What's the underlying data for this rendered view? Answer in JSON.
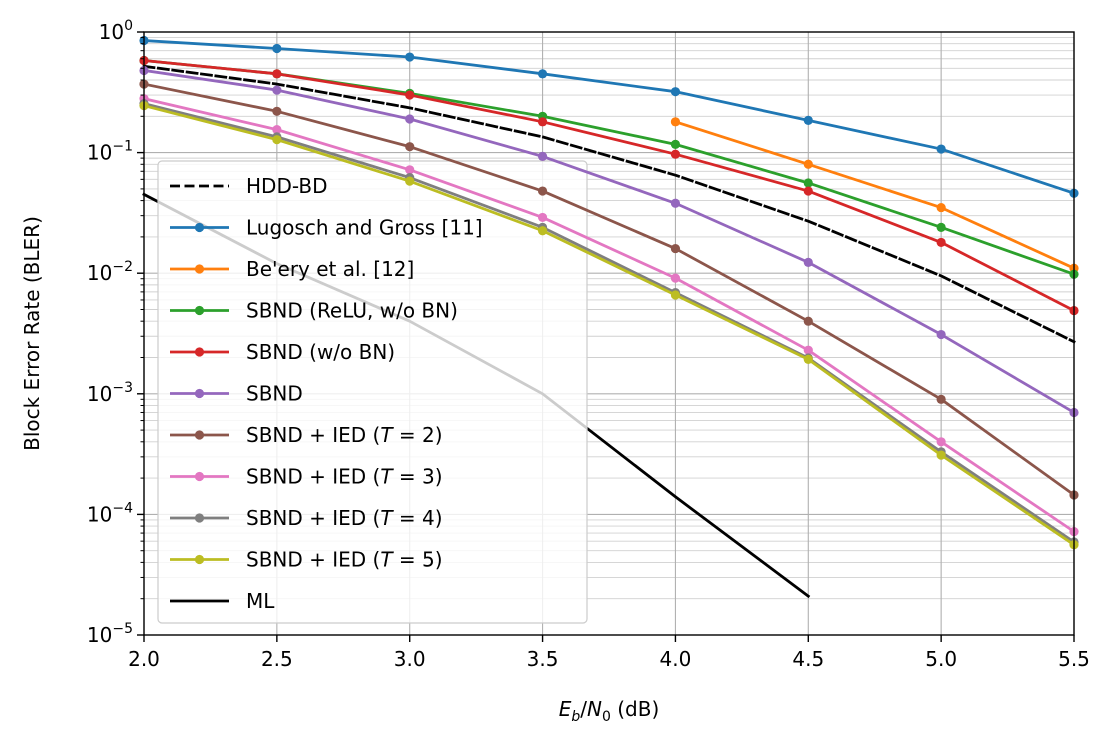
{
  "chart_data": {
    "type": "line",
    "xscale": "linear",
    "yscale": "log",
    "xlim": [
      2.0,
      5.5
    ],
    "ylim": [
      1e-05,
      1
    ],
    "xticks": [
      2.0,
      2.5,
      3.0,
      3.5,
      4.0,
      4.5,
      5.0,
      5.5
    ],
    "xtick_labels": [
      "2.0",
      "2.5",
      "3.0",
      "3.5",
      "4.0",
      "4.5",
      "5.0",
      "5.5"
    ],
    "ytick_exponents": [
      0,
      -1,
      -2,
      -3,
      -4,
      -5
    ],
    "ytick_base": "10",
    "ytick_labels": [
      "10^0",
      "10^−1",
      "10^−2",
      "10^−3",
      "10^−4",
      "10^−5"
    ],
    "xlabel": {
      "E": "E",
      "b": "b",
      "slash": "/",
      "N": "N",
      "zero": "0",
      "unit": " (dB)"
    },
    "xlabel_text": "E_b/N_0 (dB)",
    "ylabel": "Block Error Rate (BLER)",
    "grid": "major and minor",
    "legend_position": "lower-left",
    "series": [
      {
        "name": "HDD-BD",
        "color": "#000000",
        "dash": "dashed",
        "markers": false,
        "x": [
          2.0,
          2.5,
          3.0,
          3.5,
          4.0,
          4.5,
          5.0,
          5.5
        ],
        "y": [
          0.52,
          0.37,
          0.235,
          0.135,
          0.065,
          0.027,
          0.0095,
          0.0027
        ]
      },
      {
        "name": "Lugosch and Gross [11]",
        "color": "#1f77b4",
        "dash": "solid",
        "markers": true,
        "x": [
          2.0,
          2.5,
          3.0,
          3.5,
          4.0,
          4.5,
          5.0,
          5.5
        ],
        "y": [
          0.85,
          0.73,
          0.62,
          0.45,
          0.32,
          0.185,
          0.107,
          0.046
        ]
      },
      {
        "name": "Be'ery et al. [12]",
        "color": "#ff7f0e",
        "dash": "solid",
        "markers": true,
        "x": [
          4.0,
          4.5,
          5.0,
          5.5
        ],
        "y": [
          0.18,
          0.08,
          0.035,
          0.011
        ]
      },
      {
        "name": "SBND (ReLU, w/o BN)",
        "color": "#2ca02c",
        "dash": "solid",
        "markers": true,
        "x": [
          2.0,
          2.5,
          3.0,
          3.5,
          4.0,
          4.5,
          5.0,
          5.5
        ],
        "y": [
          0.58,
          0.45,
          0.31,
          0.2,
          0.117,
          0.056,
          0.024,
          0.0098
        ]
      },
      {
        "name": "SBND (w/o BN)",
        "color": "#d62728",
        "dash": "solid",
        "markers": true,
        "x": [
          2.0,
          2.5,
          3.0,
          3.5,
          4.0,
          4.5,
          5.0,
          5.5
        ],
        "y": [
          0.58,
          0.45,
          0.3,
          0.18,
          0.097,
          0.048,
          0.018,
          0.0049
        ]
      },
      {
        "name": "SBND",
        "color": "#9467bd",
        "dash": "solid",
        "markers": true,
        "x": [
          2.0,
          2.5,
          3.0,
          3.5,
          4.0,
          4.5,
          5.0,
          5.5
        ],
        "y": [
          0.48,
          0.33,
          0.19,
          0.093,
          0.038,
          0.0123,
          0.0031,
          0.0007
        ]
      },
      {
        "name": "SBND + IED (T = 2)",
        "label_parts": [
          "SBND + IED (",
          "T",
          " = 2)"
        ],
        "color": "#8c564b",
        "dash": "solid",
        "markers": true,
        "x": [
          2.0,
          2.5,
          3.0,
          3.5,
          4.0,
          4.5,
          5.0,
          5.5
        ],
        "y": [
          0.37,
          0.22,
          0.112,
          0.048,
          0.016,
          0.004,
          0.0009,
          0.000145
        ]
      },
      {
        "name": "SBND + IED (T = 3)",
        "label_parts": [
          "SBND + IED (",
          "T",
          " = 3)"
        ],
        "color": "#e377c2",
        "dash": "solid",
        "markers": true,
        "x": [
          2.0,
          2.5,
          3.0,
          3.5,
          4.0,
          4.5,
          5.0,
          5.5
        ],
        "y": [
          0.28,
          0.155,
          0.072,
          0.029,
          0.0091,
          0.0023,
          0.0004,
          7.2e-05
        ]
      },
      {
        "name": "SBND + IED (T = 4)",
        "label_parts": [
          "SBND + IED (",
          "T",
          " = 4)"
        ],
        "color": "#7f7f7f",
        "dash": "solid",
        "markers": true,
        "x": [
          2.0,
          2.5,
          3.0,
          3.5,
          4.0,
          4.5,
          5.0,
          5.5
        ],
        "y": [
          0.255,
          0.135,
          0.062,
          0.024,
          0.0069,
          0.00198,
          0.00033,
          5.9e-05
        ]
      },
      {
        "name": "SBND + IED (T = 5)",
        "label_parts": [
          "SBND + IED (",
          "T",
          " = 5)"
        ],
        "color": "#bcbd22",
        "dash": "solid",
        "markers": true,
        "x": [
          2.0,
          2.5,
          3.0,
          3.5,
          4.0,
          4.5,
          5.0,
          5.5
        ],
        "y": [
          0.245,
          0.128,
          0.058,
          0.0225,
          0.0066,
          0.00193,
          0.00031,
          5.6e-05
        ]
      },
      {
        "name": "ML",
        "color": "#000000",
        "dash": "solid",
        "markers": false,
        "x": [
          2.0,
          2.5,
          3.0,
          3.5,
          4.0,
          4.5
        ],
        "y": [
          0.045,
          0.012,
          0.004,
          0.001,
          0.00014,
          2.1e-05
        ]
      }
    ]
  }
}
